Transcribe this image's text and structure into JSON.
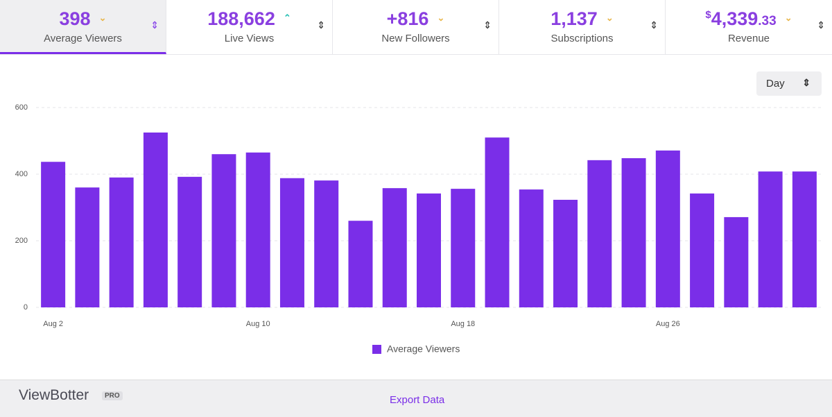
{
  "stats": [
    {
      "value": "398",
      "label": "Average Viewers"
    },
    {
      "value": "188,662",
      "label": "Live Views"
    },
    {
      "value": "+816",
      "label": "New Followers"
    },
    {
      "value": "1,137",
      "label": "Subscriptions"
    },
    {
      "currency": "$",
      "value": "4,339",
      "cents": ".33",
      "label": "Revenue"
    }
  ],
  "period": "Day",
  "chart_data": {
    "type": "bar",
    "categories": [
      "Aug 2",
      null,
      null,
      null,
      null,
      null,
      "Aug 10",
      null,
      null,
      null,
      null,
      null,
      "Aug 18",
      null,
      null,
      null,
      null,
      null,
      "Aug 26",
      null,
      null,
      null,
      null
    ],
    "series": [
      {
        "name": "Average Viewers",
        "color": "#7a2ee8",
        "values": [
          437,
          360,
          390,
          525,
          392,
          460,
          465,
          388,
          381,
          260,
          358,
          342,
          356,
          510,
          354,
          323,
          442,
          448,
          471,
          342,
          271,
          408,
          408
        ]
      }
    ],
    "ylim": [
      0,
      600
    ],
    "yticks": [
      0,
      200,
      400,
      600
    ],
    "grid": true
  },
  "footer": {
    "brand": "ViewBotter",
    "badge": "PRO",
    "link": "Export Data"
  }
}
